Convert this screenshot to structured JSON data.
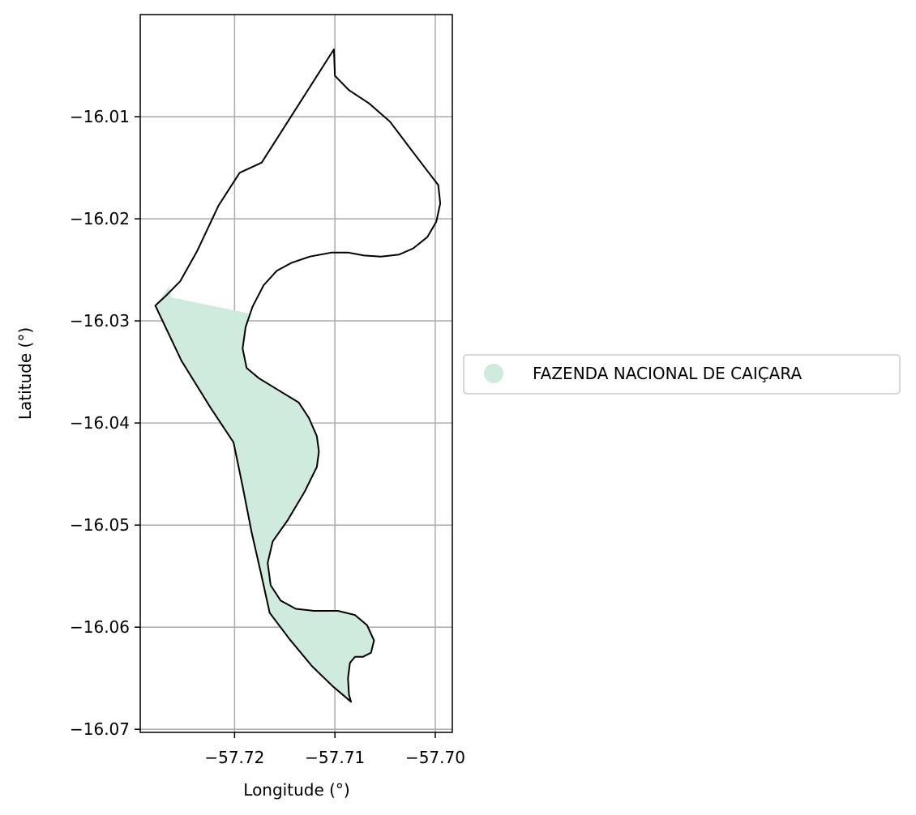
{
  "map": {
    "xlabel": "Longitude (°)",
    "ylabel": "Latitude (°)",
    "xlim": [
      -57.7294,
      -57.6983
    ],
    "ylim": [
      -16.0703,
      -16.0
    ],
    "xticks": [
      {
        "value": -57.72,
        "label": "−57.72"
      },
      {
        "value": -57.71,
        "label": "−57.71"
      },
      {
        "value": -57.7,
        "label": "−57.70"
      }
    ],
    "yticks": [
      {
        "value": -16.01,
        "label": "−16.01"
      },
      {
        "value": -16.02,
        "label": "−16.02"
      },
      {
        "value": -16.03,
        "label": "−16.03"
      },
      {
        "value": -16.04,
        "label": "−16.04"
      },
      {
        "value": -16.05,
        "label": "−16.05"
      },
      {
        "value": -16.06,
        "label": "−16.06"
      },
      {
        "value": -16.07,
        "label": "−16.07"
      }
    ],
    "grid": true,
    "legend": {
      "placement": "center-right outside",
      "items": [
        {
          "label": "FAZENDA NACIONAL DE CAIÇARA",
          "color": "#cfebdd"
        }
      ]
    },
    "fill_color": "#cfebdd",
    "outline_color": "#000000",
    "outline_lon_lat": [
      [
        -57.7101,
        -16.0034
      ],
      [
        -57.71,
        -16.006
      ],
      [
        -57.7086,
        -16.0074
      ],
      [
        -57.7066,
        -16.0087
      ],
      [
        -57.7045,
        -16.0105
      ],
      [
        -57.7025,
        -16.0131
      ],
      [
        -57.7008,
        -16.0153
      ],
      [
        -57.6997,
        -16.0167
      ],
      [
        -57.6995,
        -16.0185
      ],
      [
        -57.6999,
        -16.0203
      ],
      [
        -57.7008,
        -16.0218
      ],
      [
        -57.7022,
        -16.0229
      ],
      [
        -57.7036,
        -16.0235
      ],
      [
        -57.7054,
        -16.0237
      ],
      [
        -57.7071,
        -16.0236
      ],
      [
        -57.7087,
        -16.0233
      ],
      [
        -57.7103,
        -16.0233
      ],
      [
        -57.7125,
        -16.0237
      ],
      [
        -57.7143,
        -16.0243
      ],
      [
        -57.7158,
        -16.0251
      ],
      [
        -57.7171,
        -16.0265
      ],
      [
        -57.7182,
        -16.0286
      ],
      [
        -57.7189,
        -16.0306
      ],
      [
        -57.7192,
        -16.0327
      ],
      [
        -57.7188,
        -16.0346
      ],
      [
        -57.7176,
        -16.0356
      ],
      [
        -57.7156,
        -16.0368
      ],
      [
        -57.7136,
        -16.038
      ],
      [
        -57.7126,
        -16.0395
      ],
      [
        -57.7118,
        -16.0413
      ],
      [
        -57.7116,
        -16.0428
      ],
      [
        -57.7118,
        -16.0443
      ],
      [
        -57.713,
        -16.0467
      ],
      [
        -57.7147,
        -16.0495
      ],
      [
        -57.7162,
        -16.0516
      ],
      [
        -57.7167,
        -16.0537
      ],
      [
        -57.7164,
        -16.0559
      ],
      [
        -57.7154,
        -16.0574
      ],
      [
        -57.7139,
        -16.0582
      ],
      [
        -57.7121,
        -16.0584
      ],
      [
        -57.7097,
        -16.0584
      ],
      [
        -57.708,
        -16.0588
      ],
      [
        -57.7068,
        -16.0598
      ],
      [
        -57.7061,
        -16.0613
      ],
      [
        -57.7064,
        -16.0625
      ],
      [
        -57.7072,
        -16.0629
      ],
      [
        -57.708,
        -16.0629
      ],
      [
        -57.7085,
        -16.0635
      ],
      [
        -57.7087,
        -16.065
      ],
      [
        -57.7086,
        -16.0666
      ],
      [
        -57.7084,
        -16.0673
      ],
      [
        -57.7102,
        -16.0658
      ],
      [
        -57.7123,
        -16.0638
      ],
      [
        -57.7145,
        -16.0612
      ],
      [
        -57.7165,
        -16.0586
      ],
      [
        -57.7174,
        -16.0546
      ],
      [
        -57.7183,
        -16.0507
      ],
      [
        -57.7192,
        -16.0462
      ],
      [
        -57.7201,
        -16.0419
      ],
      [
        -57.7224,
        -16.0385
      ],
      [
        -57.7253,
        -16.0339
      ],
      [
        -57.7279,
        -16.0285
      ],
      [
        -57.7268,
        -16.0275
      ],
      [
        -57.7254,
        -16.0261
      ],
      [
        -57.7237,
        -16.0231
      ],
      [
        -57.7216,
        -16.0187
      ],
      [
        -57.7195,
        -16.0155
      ],
      [
        -57.7173,
        -16.0145
      ],
      [
        -57.7101,
        -16.0034
      ]
    ],
    "fill_lon_lat": [
      [
        -57.7265,
        -16.0266
      ],
      [
        -57.7263,
        -16.0277
      ],
      [
        -57.7184,
        -16.0293
      ],
      [
        -57.7189,
        -16.0306
      ],
      [
        -57.7192,
        -16.0327
      ],
      [
        -57.7188,
        -16.0346
      ],
      [
        -57.7176,
        -16.0356
      ],
      [
        -57.7156,
        -16.0368
      ],
      [
        -57.7136,
        -16.038
      ],
      [
        -57.7126,
        -16.0395
      ],
      [
        -57.7118,
        -16.0413
      ],
      [
        -57.7116,
        -16.0428
      ],
      [
        -57.7118,
        -16.0443
      ],
      [
        -57.713,
        -16.0467
      ],
      [
        -57.7147,
        -16.0495
      ],
      [
        -57.7162,
        -16.0516
      ],
      [
        -57.7167,
        -16.0537
      ],
      [
        -57.7164,
        -16.0559
      ],
      [
        -57.7154,
        -16.0574
      ],
      [
        -57.7139,
        -16.0582
      ],
      [
        -57.7121,
        -16.0584
      ],
      [
        -57.7097,
        -16.0584
      ],
      [
        -57.708,
        -16.0588
      ],
      [
        -57.7068,
        -16.0598
      ],
      [
        -57.7061,
        -16.0613
      ],
      [
        -57.7064,
        -16.0625
      ],
      [
        -57.7072,
        -16.0629
      ],
      [
        -57.708,
        -16.0629
      ],
      [
        -57.7085,
        -16.0635
      ],
      [
        -57.7087,
        -16.065
      ],
      [
        -57.7086,
        -16.0666
      ],
      [
        -57.7084,
        -16.0673
      ],
      [
        -57.7102,
        -16.0658
      ],
      [
        -57.7123,
        -16.0638
      ],
      [
        -57.7145,
        -16.0612
      ],
      [
        -57.7165,
        -16.0586
      ],
      [
        -57.7174,
        -16.0546
      ],
      [
        -57.7183,
        -16.0507
      ],
      [
        -57.7192,
        -16.0462
      ],
      [
        -57.7201,
        -16.0419
      ],
      [
        -57.7224,
        -16.0385
      ],
      [
        -57.7253,
        -16.0339
      ],
      [
        -57.7279,
        -16.0285
      ],
      [
        -57.7265,
        -16.0266
      ]
    ]
  }
}
